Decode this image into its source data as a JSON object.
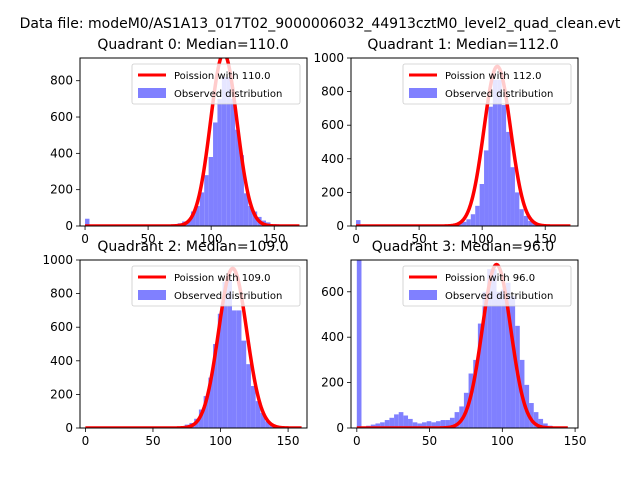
{
  "figure": {
    "suptitle": "Data file: modeM0/AS1A13_017T02_9000006032_44913cztM0_level2_quad_clean.evt"
  },
  "chart_data": [
    {
      "type": "bar",
      "title": "Quadrant 0: Median=110.0",
      "xlim": [
        -4,
        176
      ],
      "ylim": [
        0,
        925
      ],
      "xticks": [
        0,
        50,
        100,
        150
      ],
      "yticks": [
        0,
        200,
        400,
        600,
        800
      ],
      "hist": {
        "name": "Observed distribution",
        "color": "#8080ff",
        "bin_width": 3.5,
        "bins": [
          [
            0,
            40
          ],
          [
            70,
            10
          ],
          [
            73.5,
            15
          ],
          [
            77,
            25
          ],
          [
            80.5,
            30
          ],
          [
            84,
            80
          ],
          [
            87.5,
            110
          ],
          [
            91,
            185
          ],
          [
            94.5,
            280
          ],
          [
            98,
            380
          ],
          [
            101.5,
            570
          ],
          [
            105,
            700
          ],
          [
            108.5,
            820
          ],
          [
            112,
            820
          ],
          [
            115.5,
            700
          ],
          [
            119,
            530
          ],
          [
            122.5,
            390
          ],
          [
            126,
            180
          ],
          [
            129.5,
            110
          ],
          [
            133,
            80
          ],
          [
            136.5,
            50
          ],
          [
            140,
            30
          ],
          [
            143.5,
            20
          ],
          [
            147,
            10
          ],
          [
            150.5,
            10
          ]
        ]
      },
      "poisson": {
        "name": "Poission with 110.0",
        "mean": 110.0,
        "peak": 950,
        "x_range": [
          0,
          170
        ],
        "color": "#ff0000"
      }
    },
    {
      "type": "bar",
      "title": "Quadrant 1: Median=112.0",
      "xlim": [
        -4,
        176
      ],
      "ylim": [
        0,
        1000
      ],
      "xticks": [
        0,
        50,
        100,
        150
      ],
      "yticks": [
        0,
        200,
        400,
        600,
        800,
        1000
      ],
      "hist": {
        "name": "Observed distribution",
        "color": "#8080ff",
        "bin_width": 3.5,
        "bins": [
          [
            0,
            35
          ],
          [
            77,
            15
          ],
          [
            80.5,
            20
          ],
          [
            84,
            25
          ],
          [
            87.5,
            40
          ],
          [
            91,
            70
          ],
          [
            94.5,
            120
          ],
          [
            98,
            250
          ],
          [
            101.5,
            450
          ],
          [
            105,
            710
          ],
          [
            108.5,
            870
          ],
          [
            112,
            870
          ],
          [
            115.5,
            720
          ],
          [
            119,
            560
          ],
          [
            122.5,
            350
          ],
          [
            126,
            200
          ],
          [
            129.5,
            100
          ],
          [
            133,
            60
          ],
          [
            136.5,
            30
          ],
          [
            140,
            20
          ],
          [
            143.5,
            15
          ],
          [
            147,
            10
          ]
        ]
      },
      "poisson": {
        "name": "Poission with 112.0",
        "mean": 112.0,
        "peak": 950,
        "x_range": [
          0,
          170
        ],
        "color": "#ff0000"
      }
    },
    {
      "type": "bar",
      "title": "Quadrant 2: Median=109.0",
      "xlim": [
        -4,
        164
      ],
      "ylim": [
        0,
        1000
      ],
      "xticks": [
        0,
        50,
        100,
        150
      ],
      "yticks": [
        0,
        200,
        400,
        600,
        800,
        1000
      ],
      "hist": {
        "name": "Observed distribution",
        "color": "#8080ff",
        "bin_width": 3.5,
        "bins": [
          [
            70,
            10
          ],
          [
            73.5,
            20
          ],
          [
            77,
            30
          ],
          [
            80.5,
            55
          ],
          [
            84,
            110
          ],
          [
            87.5,
            190
          ],
          [
            91,
            300
          ],
          [
            94.5,
            500
          ],
          [
            98,
            680
          ],
          [
            101.5,
            870
          ],
          [
            105,
            880
          ],
          [
            108.5,
            700
          ],
          [
            112,
            700
          ],
          [
            115.5,
            520
          ],
          [
            119,
            380
          ],
          [
            122.5,
            250
          ],
          [
            126,
            160
          ],
          [
            129.5,
            90
          ],
          [
            133,
            40
          ],
          [
            136.5,
            20
          ],
          [
            140,
            10
          ]
        ]
      },
      "poisson": {
        "name": "Poission with 109.0",
        "mean": 109.0,
        "peak": 950,
        "x_range": [
          0,
          160
        ],
        "color": "#ff0000"
      }
    },
    {
      "type": "bar",
      "title": "Quadrant 3: Median=96.0",
      "xlim": [
        -4,
        152
      ],
      "ylim": [
        0,
        740
      ],
      "xticks": [
        0,
        50,
        100,
        150
      ],
      "yticks": [
        0,
        200,
        400,
        600
      ],
      "hist": {
        "name": "Observed distribution",
        "color": "#8080ff",
        "bin_width": 3.2,
        "bins": [
          [
            0,
            740
          ],
          [
            3.2,
            5
          ],
          [
            6.4,
            10
          ],
          [
            9.6,
            15
          ],
          [
            12.8,
            20
          ],
          [
            16,
            25
          ],
          [
            19.2,
            35
          ],
          [
            22.4,
            45
          ],
          [
            25.6,
            60
          ],
          [
            28.8,
            70
          ],
          [
            32,
            55
          ],
          [
            35.2,
            40
          ],
          [
            38.4,
            25
          ],
          [
            41.6,
            20
          ],
          [
            44.8,
            25
          ],
          [
            48,
            30
          ],
          [
            51.2,
            25
          ],
          [
            54.4,
            30
          ],
          [
            57.6,
            35
          ],
          [
            60.8,
            35
          ],
          [
            64,
            45
          ],
          [
            67.2,
            70
          ],
          [
            70.4,
            95
          ],
          [
            73.6,
            155
          ],
          [
            76.8,
            240
          ],
          [
            80,
            300
          ],
          [
            83.2,
            460
          ],
          [
            86.4,
            600
          ],
          [
            89.6,
            700
          ],
          [
            92.8,
            700
          ],
          [
            96,
            600
          ],
          [
            99.2,
            610
          ],
          [
            102.4,
            640
          ],
          [
            105.6,
            580
          ],
          [
            108.8,
            450
          ],
          [
            112,
            300
          ],
          [
            115.2,
            190
          ],
          [
            118.4,
            110
          ],
          [
            121.6,
            70
          ],
          [
            124.8,
            40
          ],
          [
            128,
            20
          ],
          [
            131.2,
            10
          ]
        ]
      },
      "poisson": {
        "name": "Poission with 96.0",
        "mean": 96.0,
        "peak": 720,
        "x_range": [
          0,
          145
        ],
        "color": "#ff0000"
      }
    }
  ]
}
